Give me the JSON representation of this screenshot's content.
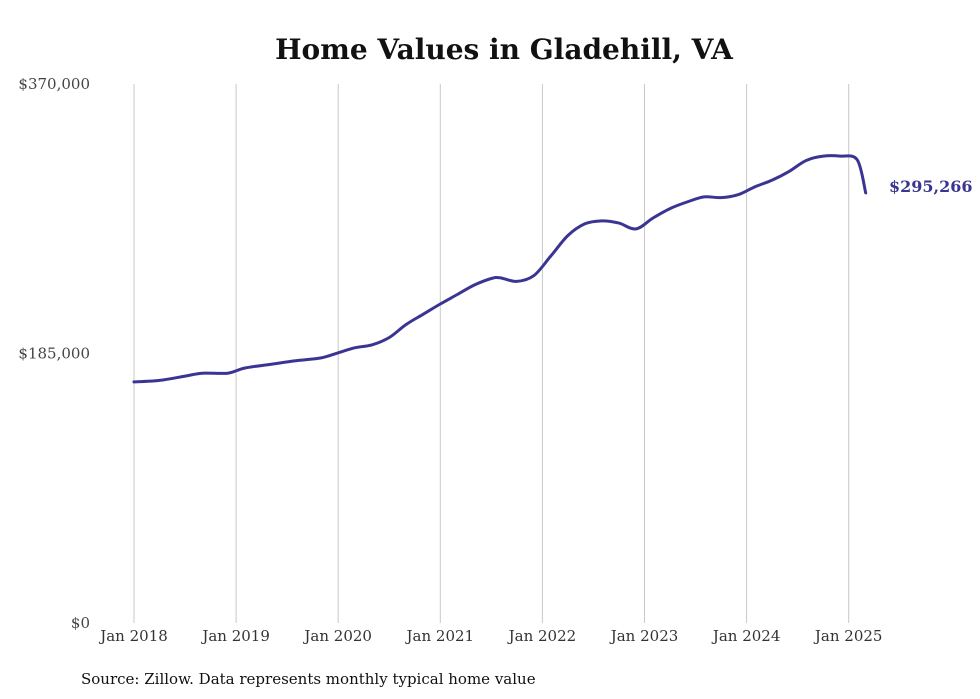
{
  "chart_data": {
    "type": "line",
    "title": "Home Values in Gladehill, VA",
    "xlabel": "",
    "ylabel": "",
    "source": "Source: Zillow. Data represents monthly typical home value",
    "ylim": [
      0,
      370000
    ],
    "yticks": [
      "$0",
      "$185,000",
      "$370,000"
    ],
    "xticks": [
      "Jan 2018",
      "Jan 2019",
      "Jan 2020",
      "Jan 2021",
      "Jan 2022",
      "Jan 2023",
      "Jan 2024",
      "Jan 2025"
    ],
    "grid": "vertical",
    "legend": "none",
    "end_label": "$295,266",
    "line_color": "#3a3593",
    "series": [
      {
        "x": [
          "2018-01",
          "2018-04",
          "2018-07",
          "2018-09",
          "2018-12",
          "2019-02",
          "2019-05",
          "2019-08",
          "2019-11",
          "2020-01",
          "2020-03",
          "2020-05",
          "2020-07",
          "2020-09",
          "2020-11",
          "2021-01",
          "2021-03",
          "2021-05",
          "2021-07",
          "2021-08",
          "2021-10",
          "2021-12",
          "2022-02",
          "2022-04",
          "2022-06",
          "2022-08",
          "2022-10",
          "2022-12",
          "2023-02",
          "2023-04",
          "2023-06",
          "2023-08",
          "2023-10",
          "2023-12",
          "2024-02",
          "2024-04",
          "2024-06",
          "2024-08",
          "2024-10",
          "2024-12",
          "2025-02",
          "2025-03"
        ],
        "values": [
          165500,
          166500,
          169500,
          171500,
          171500,
          175000,
          177500,
          180000,
          182000,
          185500,
          189000,
          191000,
          196000,
          205000,
          212000,
          219000,
          225500,
          232000,
          236500,
          237000,
          234500,
          238500,
          252000,
          266000,
          274000,
          276000,
          274500,
          270500,
          278000,
          284500,
          289000,
          292500,
          292000,
          294000,
          299500,
          304000,
          310000,
          317500,
          320500,
          320500,
          318000,
          295266
        ]
      }
    ]
  }
}
